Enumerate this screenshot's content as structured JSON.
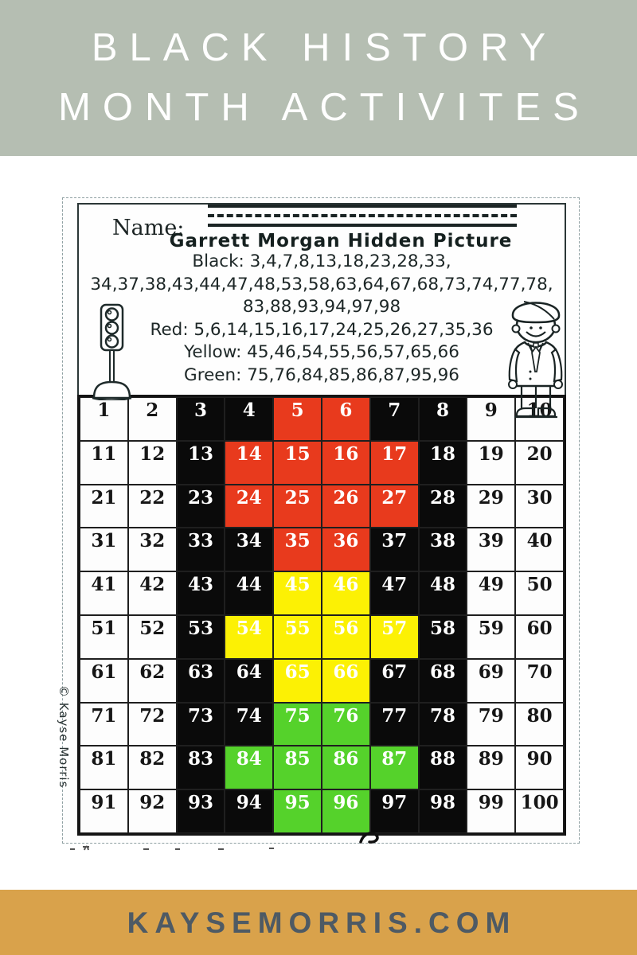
{
  "header": {
    "line1": "BLACK HISTORY",
    "line2": "MONTH ACTIVITES",
    "bg_color": "#b5beb2",
    "text_color": "#ffffff"
  },
  "footer": {
    "text": "KAYSEMORRIS.COM",
    "bg_color": "#d9a24b",
    "text_color": "#4e5a64"
  },
  "worksheet": {
    "name_label": "Name:",
    "title": "Garrett Morgan Hidden Picture",
    "instruction_lines": [
      "Black: 3,4,7,8,13,18,23,28,33,",
      "34,37,38,43,44,47,48,53,58,63,64,67,68,73,74,77,78,",
      "83,88,93,94,97,98",
      "Red: 5,6,14,15,16,17,24,25,26,27,35,36",
      "Yellow: 45,46,54,55,56,57,65,66",
      "Green: 75,76,84,85,86,87,95,96"
    ],
    "credit": "© Kayse Morris",
    "icons": {
      "left_clipart": "traffic-light-icon",
      "right_clipart": "garrett-morgan-boy-icon"
    },
    "grid": {
      "rows": 10,
      "cols": 10,
      "color_map": {
        "w": "#fdfdfd",
        "b": "#0a0a0a",
        "r": "#e83a1d",
        "y": "#fcf104",
        "g": "#55d22b"
      },
      "number_color_on_white": "#161616",
      "number_color_on_colored": "#ffffff",
      "cells": [
        [
          1,
          "w"
        ],
        [
          2,
          "w"
        ],
        [
          3,
          "b"
        ],
        [
          4,
          "b"
        ],
        [
          5,
          "r"
        ],
        [
          6,
          "r"
        ],
        [
          7,
          "b"
        ],
        [
          8,
          "b"
        ],
        [
          9,
          "w"
        ],
        [
          10,
          "w"
        ],
        [
          11,
          "w"
        ],
        [
          12,
          "w"
        ],
        [
          13,
          "b"
        ],
        [
          14,
          "r"
        ],
        [
          15,
          "r"
        ],
        [
          16,
          "r"
        ],
        [
          17,
          "r"
        ],
        [
          18,
          "b"
        ],
        [
          19,
          "w"
        ],
        [
          20,
          "w"
        ],
        [
          21,
          "w"
        ],
        [
          22,
          "w"
        ],
        [
          23,
          "b"
        ],
        [
          24,
          "r"
        ],
        [
          25,
          "r"
        ],
        [
          26,
          "r"
        ],
        [
          27,
          "r"
        ],
        [
          28,
          "b"
        ],
        [
          29,
          "w"
        ],
        [
          30,
          "w"
        ],
        [
          31,
          "w"
        ],
        [
          32,
          "w"
        ],
        [
          33,
          "b"
        ],
        [
          34,
          "b"
        ],
        [
          35,
          "r"
        ],
        [
          36,
          "r"
        ],
        [
          37,
          "b"
        ],
        [
          38,
          "b"
        ],
        [
          39,
          "w"
        ],
        [
          40,
          "w"
        ],
        [
          41,
          "w"
        ],
        [
          42,
          "w"
        ],
        [
          43,
          "b"
        ],
        [
          44,
          "b"
        ],
        [
          45,
          "y"
        ],
        [
          46,
          "y"
        ],
        [
          47,
          "b"
        ],
        [
          48,
          "b"
        ],
        [
          49,
          "w"
        ],
        [
          50,
          "w"
        ],
        [
          51,
          "w"
        ],
        [
          52,
          "w"
        ],
        [
          53,
          "b"
        ],
        [
          54,
          "y"
        ],
        [
          55,
          "y"
        ],
        [
          56,
          "y"
        ],
        [
          57,
          "y"
        ],
        [
          58,
          "b"
        ],
        [
          59,
          "w"
        ],
        [
          60,
          "w"
        ],
        [
          61,
          "w"
        ],
        [
          62,
          "w"
        ],
        [
          63,
          "b"
        ],
        [
          64,
          "b"
        ],
        [
          65,
          "y"
        ],
        [
          66,
          "y"
        ],
        [
          67,
          "b"
        ],
        [
          68,
          "b"
        ],
        [
          69,
          "w"
        ],
        [
          70,
          "w"
        ],
        [
          71,
          "w"
        ],
        [
          72,
          "w"
        ],
        [
          73,
          "b"
        ],
        [
          74,
          "b"
        ],
        [
          75,
          "g"
        ],
        [
          76,
          "g"
        ],
        [
          77,
          "b"
        ],
        [
          78,
          "b"
        ],
        [
          79,
          "w"
        ],
        [
          80,
          "w"
        ],
        [
          81,
          "w"
        ],
        [
          82,
          "w"
        ],
        [
          83,
          "b"
        ],
        [
          84,
          "g"
        ],
        [
          85,
          "g"
        ],
        [
          86,
          "g"
        ],
        [
          87,
          "g"
        ],
        [
          88,
          "b"
        ],
        [
          89,
          "w"
        ],
        [
          90,
          "w"
        ],
        [
          91,
          "w"
        ],
        [
          92,
          "w"
        ],
        [
          93,
          "b"
        ],
        [
          94,
          "b"
        ],
        [
          95,
          "g"
        ],
        [
          96,
          "g"
        ],
        [
          97,
          "b"
        ],
        [
          98,
          "b"
        ],
        [
          99,
          "w"
        ],
        [
          100,
          "w"
        ]
      ]
    }
  }
}
